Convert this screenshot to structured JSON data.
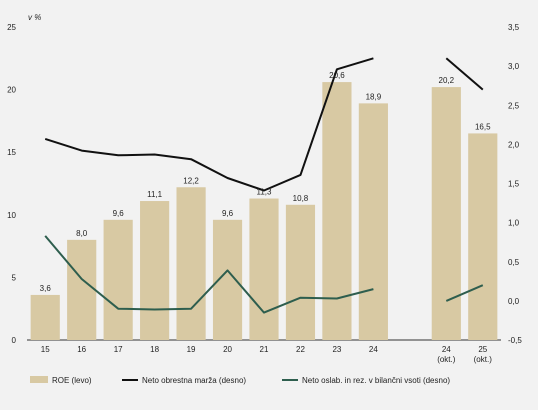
{
  "chart_data": {
    "type": "bar",
    "unit_label": "v %",
    "categories": [
      {
        "label": "15",
        "sublabel": ""
      },
      {
        "label": "16",
        "sublabel": ""
      },
      {
        "label": "17",
        "sublabel": ""
      },
      {
        "label": "18",
        "sublabel": ""
      },
      {
        "label": "19",
        "sublabel": ""
      },
      {
        "label": "20",
        "sublabel": ""
      },
      {
        "label": "21",
        "sublabel": ""
      },
      {
        "label": "22",
        "sublabel": ""
      },
      {
        "label": "23",
        "sublabel": ""
      },
      {
        "label": "24",
        "sublabel": ""
      },
      {
        "label": "",
        "sublabel": ""
      },
      {
        "label": "24",
        "sublabel": "(okt.)"
      },
      {
        "label": "25",
        "sublabel": "(okt.)"
      }
    ],
    "y_left": {
      "min": 0,
      "max": 25,
      "ticks": [
        "0",
        "5",
        "10",
        "15",
        "20",
        "25"
      ]
    },
    "y_right": {
      "min": -0.5,
      "max": 3.5,
      "ticks": [
        "-0,5",
        "0,0",
        "0,5",
        "1,0",
        "1,5",
        "2,0",
        "2,5",
        "3,0",
        "3,5"
      ]
    },
    "grid": false,
    "legend_position": "bottom",
    "series": [
      {
        "name": "ROE (levo)",
        "kind": "bar",
        "axis": "left",
        "color": "#d8c9a3",
        "values": [
          3.6,
          8.0,
          9.6,
          11.1,
          12.2,
          9.6,
          11.3,
          10.8,
          20.6,
          18.9,
          null,
          20.2,
          16.5
        ],
        "labels": [
          "3,6",
          "8,0",
          "9,6",
          "11,1",
          "12,2",
          "9,6",
          "11,3",
          "10,8",
          "20,6",
          "18,9",
          "",
          "20,2",
          "16,5"
        ]
      },
      {
        "name": "Neto obrestna marža (desno)",
        "kind": "line",
        "axis": "right",
        "color": "#111111",
        "values": [
          2.07,
          1.92,
          1.86,
          1.87,
          1.81,
          1.57,
          1.41,
          1.61,
          2.96,
          3.1,
          null,
          3.1,
          2.7
        ]
      },
      {
        "name": "Neto oslab. in rez. v bilančni vsoti (desno)",
        "kind": "line",
        "axis": "right",
        "color": "#2e5e4e",
        "values": [
          0.83,
          0.28,
          -0.1,
          -0.11,
          -0.1,
          0.39,
          -0.15,
          0.04,
          0.03,
          0.15,
          null,
          0.0,
          0.2
        ]
      }
    ]
  }
}
